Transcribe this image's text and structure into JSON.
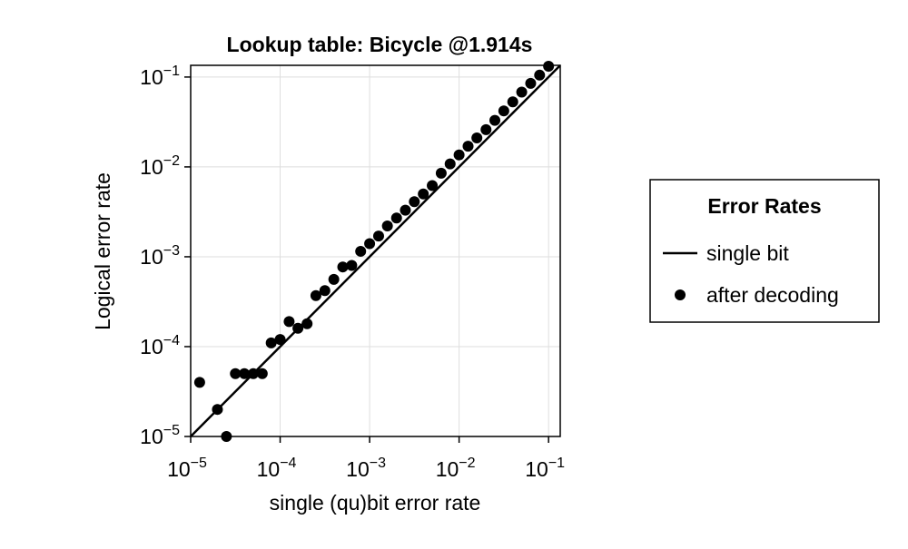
{
  "chart_data": {
    "type": "scatter",
    "title": "Lookup table: Bicycle @1.914s",
    "xlabel": "single (qu)bit error rate",
    "ylabel": "Logical error rate",
    "xscale": "log",
    "yscale": "log",
    "xlim": [
      1e-05,
      0.135
    ],
    "ylim": [
      1e-05,
      0.135
    ],
    "grid": true,
    "legend": {
      "title": "Error Rates",
      "position": "right",
      "entries": [
        "single bit",
        "after decoding"
      ]
    },
    "x_ticks": [
      {
        "value": 1e-05,
        "base": "10",
        "exp": "−5"
      },
      {
        "value": 0.0001,
        "base": "10",
        "exp": "−4"
      },
      {
        "value": 0.001,
        "base": "10",
        "exp": "−3"
      },
      {
        "value": 0.01,
        "base": "10",
        "exp": "−2"
      },
      {
        "value": 0.1,
        "base": "10",
        "exp": "−1"
      }
    ],
    "y_ticks": [
      {
        "value": 1e-05,
        "base": "10",
        "exp": "−5"
      },
      {
        "value": 0.0001,
        "base": "10",
        "exp": "−4"
      },
      {
        "value": 0.001,
        "base": "10",
        "exp": "−3"
      },
      {
        "value": 0.01,
        "base": "10",
        "exp": "−2"
      },
      {
        "value": 0.1,
        "base": "10",
        "exp": "−1"
      }
    ],
    "series": [
      {
        "name": "single bit",
        "kind": "line",
        "color": "#000000",
        "x": [
          1e-05,
          0.135
        ],
        "y": [
          1e-05,
          0.135
        ]
      },
      {
        "name": "after decoding",
        "kind": "scatter",
        "color": "#000000",
        "x": [
          1.26e-05,
          1.99e-05,
          2.51e-05,
          3.16e-05,
          3.98e-05,
          5.01e-05,
          6.31e-05,
          7.94e-05,
          0.0001,
          0.000126,
          0.000158,
          0.0002,
          0.000251,
          0.000316,
          0.000398,
          0.000501,
          0.000631,
          0.000794,
          0.001,
          0.00126,
          0.00158,
          0.002,
          0.00251,
          0.00316,
          0.00398,
          0.00501,
          0.00631,
          0.00794,
          0.01,
          0.0126,
          0.0158,
          0.02,
          0.0251,
          0.0316,
          0.0398,
          0.0501,
          0.0631,
          0.0794,
          0.1
        ],
        "y": [
          4e-05,
          2e-05,
          1e-05,
          5e-05,
          5e-05,
          5e-05,
          5e-05,
          0.00011,
          0.00012,
          0.00019,
          0.00016,
          0.00018,
          0.00037,
          0.00042,
          0.00056,
          0.00077,
          0.0008,
          0.00115,
          0.0014,
          0.0017,
          0.0022,
          0.0027,
          0.0033,
          0.0041,
          0.005,
          0.0062,
          0.0085,
          0.0108,
          0.0136,
          0.017,
          0.021,
          0.026,
          0.033,
          0.042,
          0.053,
          0.068,
          0.085,
          0.105,
          0.132
        ]
      }
    ]
  }
}
